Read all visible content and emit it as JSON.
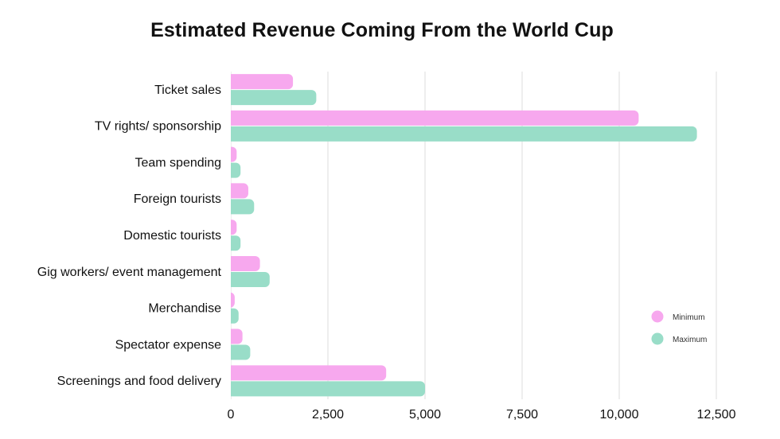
{
  "chart_data": {
    "type": "bar",
    "orientation": "horizontal",
    "title": "Estimated Revenue Coming From the World Cup",
    "xlabel": "",
    "ylabel": "",
    "xlim": [
      0,
      12500
    ],
    "xticks": [
      0,
      2500,
      5000,
      7500,
      10000,
      12500
    ],
    "xtick_labels": [
      "0",
      "2,500",
      "5,000",
      "7,500",
      "10,000",
      "12,500"
    ],
    "grid": "vertical",
    "legend_position": "right",
    "categories": [
      "Ticket sales",
      "TV rights/ sponsorship",
      "Team spending",
      "Foreign tourists",
      "Domestic tourists",
      "Gig workers/ event management",
      "Merchandise",
      "Spectator expense",
      "Screenings and food delivery"
    ],
    "series": [
      {
        "name": "Minimum",
        "color": "#F7A8EE",
        "values": [
          1600,
          10500,
          150,
          450,
          150,
          750,
          100,
          300,
          4000
        ]
      },
      {
        "name": "Maximum",
        "color": "#99DDC8",
        "values": [
          2200,
          12000,
          250,
          600,
          250,
          1000,
          200,
          500,
          5000
        ]
      }
    ]
  }
}
